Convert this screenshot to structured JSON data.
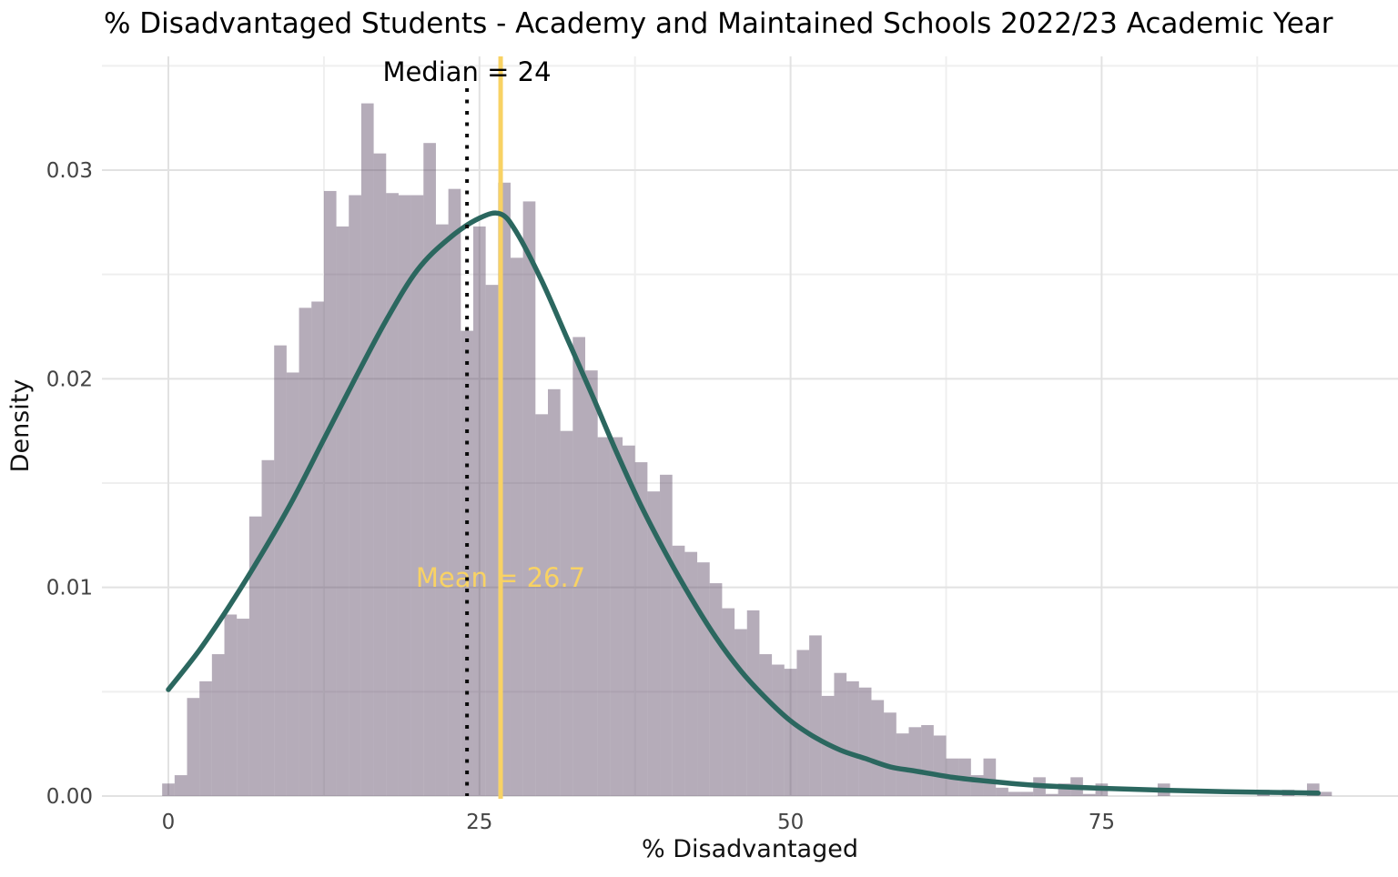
{
  "title": "% Disadvantaged Students - Academy and Maintained Schools 2022/23 Academic Year",
  "chart_data": {
    "type": "histogram",
    "title": "% Disadvantaged Students - Academy and Maintained Schools 2022/23 Academic Year",
    "xlabel": "% Disadvantaged",
    "ylabel": "Density",
    "xlim": [
      -6,
      98.8
    ],
    "ylim": [
      0,
      0.0355
    ],
    "grid": "major+minor",
    "legend_position": "none",
    "bin_width": 1,
    "x_ticks": [
      0,
      25,
      50,
      75
    ],
    "x_tick_labels": [
      "0",
      "25",
      "50",
      "75"
    ],
    "x_minor_ticks": [
      12.5,
      37.5,
      62.5,
      87.5
    ],
    "y_ticks": [
      0,
      0.01,
      0.02,
      0.03
    ],
    "y_tick_labels": [
      "0.00",
      "0.01",
      "0.02",
      "0.03"
    ],
    "y_minor_ticks": [
      0.005,
      0.015,
      0.025,
      0.035
    ],
    "bin_centers": [
      0,
      1,
      2,
      3,
      4,
      5,
      6,
      7,
      8,
      9,
      10,
      11,
      12,
      13,
      14,
      15,
      16,
      17,
      18,
      19,
      20,
      21,
      22,
      23,
      24,
      25,
      26,
      27,
      28,
      29,
      30,
      31,
      32,
      33,
      34,
      35,
      36,
      37,
      38,
      39,
      40,
      41,
      42,
      43,
      44,
      45,
      46,
      47,
      48,
      49,
      50,
      51,
      52,
      53,
      54,
      55,
      56,
      57,
      58,
      59,
      60,
      61,
      62,
      63,
      64,
      65,
      66,
      67,
      68,
      69,
      70,
      71,
      72,
      73,
      74,
      75,
      76,
      77,
      78,
      79,
      80,
      81,
      82,
      83,
      84,
      85,
      86,
      87,
      88,
      89,
      90,
      91,
      92,
      93
    ],
    "bin_densities": [
      0.0006,
      0.001,
      0.0047,
      0.0055,
      0.0068,
      0.0087,
      0.0085,
      0.0134,
      0.0161,
      0.0216,
      0.0203,
      0.0234,
      0.0237,
      0.029,
      0.0273,
      0.0288,
      0.0332,
      0.0308,
      0.0289,
      0.0288,
      0.0288,
      0.0313,
      0.0274,
      0.0291,
      0.0223,
      0.0273,
      0.0245,
      0.0294,
      0.0258,
      0.0285,
      0.0183,
      0.0195,
      0.0175,
      0.022,
      0.0204,
      0.0172,
      0.0172,
      0.0168,
      0.016,
      0.0146,
      0.0154,
      0.012,
      0.0117,
      0.0112,
      0.0102,
      0.009,
      0.008,
      0.0089,
      0.0068,
      0.0063,
      0.0061,
      0.007,
      0.0077,
      0.0048,
      0.0059,
      0.0055,
      0.0052,
      0.0046,
      0.004,
      0.003,
      0.0033,
      0.0034,
      0.0029,
      0.0018,
      0.0018,
      0.001,
      0.0018,
      0.0004,
      0.0002,
      0.0002,
      0.0009,
      0.0001,
      0.0006,
      0.0009,
      0.0001,
      0.0006,
      0,
      0,
      0,
      0,
      0.0006,
      0,
      0,
      0,
      0,
      0,
      0,
      0,
      0.0003,
      0,
      0.0003,
      0,
      0.0006,
      0.0002
    ],
    "density_curve": {
      "x": [
        0,
        2.5,
        5,
        7.5,
        10,
        12.5,
        15,
        17.5,
        20,
        22.5,
        25,
        26.7,
        28,
        30,
        32,
        34,
        36,
        38,
        40,
        42,
        44,
        46,
        48,
        50,
        52,
        54,
        56,
        58,
        60,
        63,
        66,
        70,
        75,
        80,
        85,
        90,
        92.4
      ],
      "y": [
        0.0051,
        0.007,
        0.0092,
        0.0116,
        0.0142,
        0.0171,
        0.02,
        0.0228,
        0.0252,
        0.0267,
        0.0277,
        0.0279,
        0.027,
        0.0247,
        0.022,
        0.0193,
        0.0165,
        0.0139,
        0.0116,
        0.0095,
        0.0076,
        0.006,
        0.0047,
        0.0036,
        0.0028,
        0.0022,
        0.0018,
        0.0014,
        0.0012,
        0.0009,
        0.0007,
        0.0005,
        0.00037,
        0.00028,
        0.00021,
        0.00016,
        0.00014
      ]
    },
    "median": {
      "value": 24,
      "label": "Median = 24"
    },
    "mean": {
      "value": 26.7,
      "label": "Mean = 26.7"
    },
    "colors": {
      "bar_fill": "#5b4763",
      "bar_opacity": 0.45,
      "density_curve": "#2b675f",
      "mean_line": "#f8d264",
      "median_line": "#0a0a0a",
      "grid_major": "#e2e2e2",
      "grid_minor": "#efefef",
      "tick_text": "#444444",
      "axis_title_text": "#111111",
      "title_text": "#000000",
      "background": "#ffffff"
    }
  }
}
